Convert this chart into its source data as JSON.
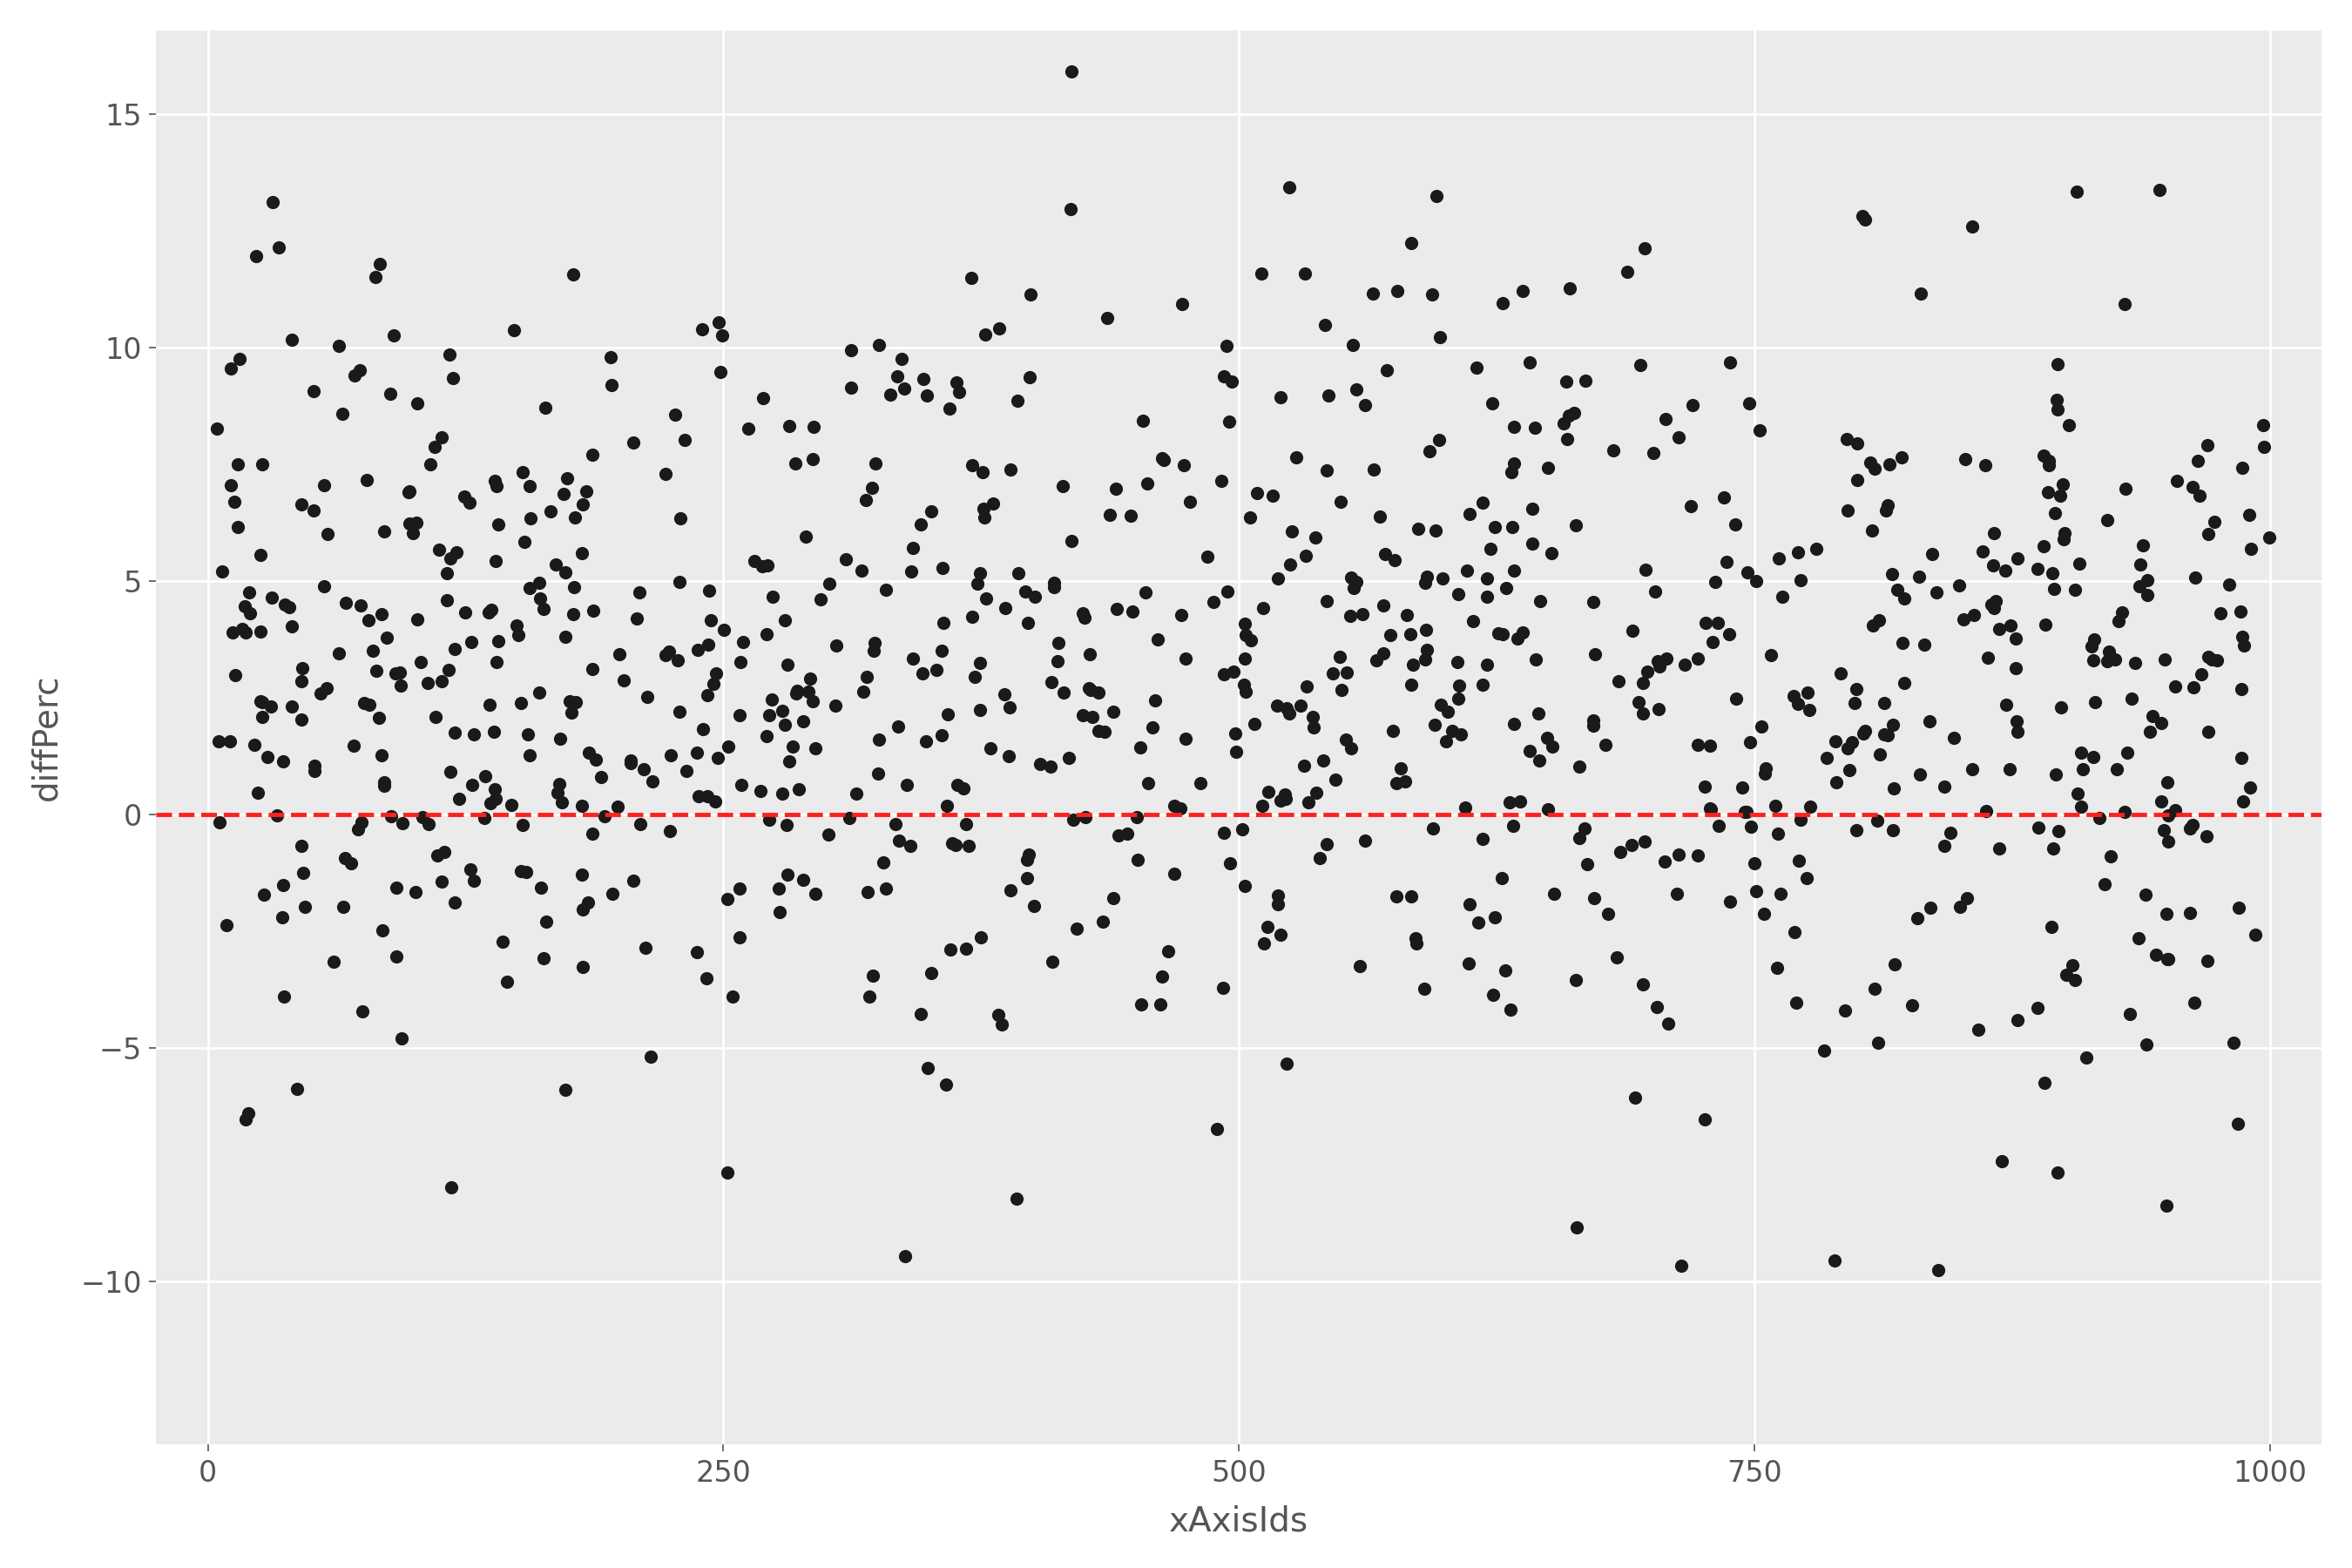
{
  "title": "",
  "xlabel": "xAxisIds",
  "ylabel": "diffPerc",
  "xlim": [
    -25,
    1025
  ],
  "ylim": [
    -13.5,
    16.8
  ],
  "yticks": [
    -10,
    -5,
    0,
    5,
    10,
    15
  ],
  "xticks": [
    0,
    250,
    500,
    750,
    1000
  ],
  "panel_background_color": "#EBEBEB",
  "figure_background_color": "#FFFFFF",
  "grid_color": "#FFFFFF",
  "dot_color": "#1A1A1A",
  "hline_color": "#FF2020",
  "hline_y": 0,
  "hline_style": "--",
  "dot_size": 120,
  "xlabel_fontsize": 28,
  "ylabel_fontsize": 28,
  "tick_fontsize": 24,
  "tick_color": "#555555",
  "label_color": "#555555",
  "seed": 42,
  "n_points": 1000,
  "grid_linewidth": 2.0,
  "hline_linewidth": 3.5
}
